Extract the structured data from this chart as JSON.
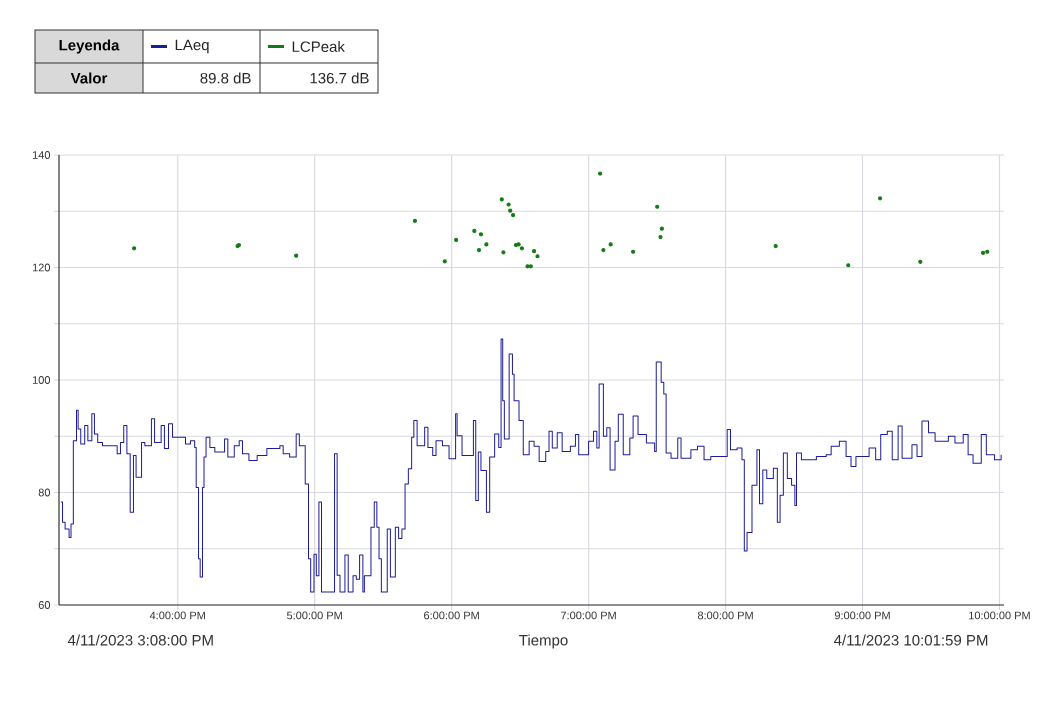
{
  "chart_data": {
    "type": "step",
    "xlabel": "Tiempo",
    "legend_title": "Leyenda",
    "legend": "top left",
    "grid": true,
    "annotations": [
      "4/11/2023 3:08:00 PM",
      "4/11/2023 10:01:59 PM",
      "Valor",
      "89.8 dB",
      "136.7 dB"
    ],
    "xlim": [
      15.1333,
      22.0331
    ],
    "ylim": [
      60,
      140
    ],
    "xticks": [
      {
        "value": 16,
        "label": "4:00:00 PM"
      },
      {
        "value": 17,
        "label": "5:00:00 PM"
      },
      {
        "value": 18,
        "label": "6:00:00 PM"
      },
      {
        "value": 19,
        "label": "7:00:00 PM"
      },
      {
        "value": 20,
        "label": "8:00:00 PM"
      },
      {
        "value": 21,
        "label": "9:00:00 PM"
      },
      {
        "value": 22,
        "label": "10:00:00 PM"
      }
    ],
    "yticks": [
      60,
      {
        "value": 70,
        "label": null
      },
      80,
      {
        "value": 90,
        "label": null
      },
      100,
      {
        "value": 110,
        "label": null
      },
      120,
      {
        "value": 130,
        "label": null
      },
      140
    ],
    "series": [
      {
        "name": "LAeq",
        "color": "#1c1c96",
        "x": [
          15.147,
          15.159,
          15.178,
          15.207,
          15.221,
          15.238,
          15.261,
          15.273,
          15.292,
          15.321,
          15.344,
          15.373,
          15.392,
          15.416,
          15.451,
          15.558,
          15.582,
          15.606,
          15.629,
          15.653,
          15.677,
          15.696,
          15.736,
          15.76,
          15.808,
          15.831,
          15.879,
          15.903,
          15.933,
          15.962,
          16.057,
          16.093,
          16.124,
          16.135,
          16.152,
          16.164,
          16.181,
          16.192,
          16.207,
          16.235,
          16.271,
          16.342,
          16.366,
          16.413,
          16.449,
          16.473,
          16.52,
          16.58,
          16.651,
          16.746,
          16.77,
          16.817,
          16.865,
          16.888,
          16.931,
          16.955,
          16.971,
          16.995,
          17.012,
          17.031,
          17.05,
          17.145,
          17.164,
          17.185,
          17.221,
          17.245,
          17.28,
          17.304,
          17.328,
          17.352,
          17.363,
          17.411,
          17.435,
          17.454,
          17.47,
          17.487,
          17.53,
          17.553,
          17.589,
          17.613,
          17.637,
          17.66,
          17.684,
          17.708,
          17.724,
          17.748,
          17.803,
          17.827,
          17.862,
          17.886,
          17.933,
          17.981,
          18.029,
          18.04,
          18.076,
          18.159,
          18.176,
          18.195,
          18.214,
          18.254,
          18.278,
          18.314,
          18.344,
          18.361,
          18.373,
          18.385,
          18.42,
          18.444,
          18.456,
          18.492,
          18.523,
          18.566,
          18.602,
          18.639,
          18.687,
          18.711,
          18.735,
          18.771,
          18.807,
          18.867,
          18.904,
          18.928,
          19.0,
          19.036,
          19.06,
          19.077,
          19.108,
          19.133,
          19.157,
          19.193,
          19.217,
          19.253,
          19.301,
          19.325,
          19.361,
          19.422,
          19.482,
          19.494,
          19.53,
          19.549,
          19.566,
          19.602,
          19.651,
          19.675,
          19.747,
          19.795,
          19.843,
          19.892,
          20.012,
          20.036,
          20.084,
          20.12,
          20.137,
          20.157,
          20.193,
          20.229,
          20.248,
          20.272,
          20.301,
          20.349,
          20.378,
          20.398,
          20.422,
          20.451,
          20.482,
          20.506,
          20.518,
          20.554,
          20.663,
          20.735,
          20.771,
          20.831,
          20.88,
          20.916,
          20.952,
          21.048,
          21.096,
          21.133,
          21.181,
          21.217,
          21.26,
          21.289,
          21.361,
          21.398,
          21.434,
          21.482,
          21.53,
          21.627,
          21.675,
          21.735,
          21.771,
          21.807,
          21.867,
          21.904,
          21.964,
          22.012
        ],
        "values": [
          78.3,
          74.7,
          73.5,
          72,
          74.4,
          89.2,
          94.6,
          91.3,
          88.6,
          91.9,
          89.2,
          94,
          90.4,
          88.9,
          88.3,
          86.9,
          88.9,
          91.9,
          86.9,
          76.5,
          86.6,
          82.7,
          88.9,
          88.3,
          93.1,
          88.9,
          91.9,
          87.8,
          92.2,
          89.8,
          88.6,
          89.2,
          88,
          80.9,
          68.2,
          65,
          80.9,
          86.3,
          89.8,
          88,
          87.2,
          89.5,
          86.3,
          88.3,
          89.2,
          86.9,
          85.7,
          86.6,
          87.8,
          88.3,
          86.9,
          86.3,
          90.4,
          88.3,
          81.5,
          68.2,
          62.3,
          69,
          65.2,
          78.3,
          62.3,
          86.9,
          65.3,
          62.3,
          68.9,
          62.3,
          65.2,
          64.6,
          68.9,
          62.3,
          65.2,
          73.8,
          78.3,
          73.8,
          68.2,
          62.3,
          73.5,
          65,
          73.8,
          71.8,
          73.5,
          81.5,
          84.2,
          89.8,
          92.8,
          88.3,
          91.6,
          88,
          86.6,
          89.2,
          88.3,
          86,
          94,
          90.1,
          86.6,
          92.8,
          78.6,
          87.2,
          83.9,
          76.5,
          86.3,
          90.4,
          88,
          107.3,
          96.3,
          89.5,
          104.6,
          101,
          96.3,
          92.8,
          86.7,
          89.1,
          88.2,
          85.5,
          87.3,
          90.9,
          87.9,
          90.6,
          87.3,
          88.2,
          90.3,
          86.7,
          89.1,
          90.9,
          87.9,
          99.3,
          90,
          91.5,
          84,
          89.1,
          93.9,
          86.7,
          89.7,
          93.6,
          90.3,
          88.8,
          87.3,
          103.2,
          99.6,
          97.5,
          87,
          86.1,
          89.7,
          86.1,
          87.6,
          88.2,
          85.8,
          86.4,
          91.2,
          87.6,
          87.9,
          85.8,
          69.6,
          72.9,
          81.3,
          87.6,
          78,
          84,
          82.5,
          84.3,
          74.7,
          79.5,
          87,
          82.5,
          81.3,
          77.7,
          87,
          85.8,
          86.4,
          86.7,
          88.2,
          89.1,
          86.4,
          84.6,
          86.4,
          87.9,
          85.8,
          90.3,
          90.9,
          85.8,
          91.8,
          86.1,
          88.5,
          86.4,
          92.7,
          90.6,
          89.1,
          90,
          88.8,
          90.3,
          86.7,
          85.2,
          90.3,
          86.7,
          85.8,
          86.7
        ]
      },
      {
        "name": "LCPeak",
        "type": "scatter",
        "marker": "circle",
        "color": "#157a15",
        "x": [
          15.682,
          16.437,
          16.447,
          16.865,
          17.732,
          17.95,
          18.033,
          18.166,
          18.214,
          18.2,
          18.254,
          18.366,
          18.378,
          18.416,
          18.428,
          18.449,
          18.47,
          18.489,
          18.513,
          18.554,
          18.578,
          18.602,
          18.627,
          19.084,
          19.108,
          19.161,
          19.325,
          19.501,
          19.525,
          19.535,
          20.366,
          20.896,
          21.128,
          21.422,
          21.88,
          21.911
        ],
        "values": [
          123.4,
          123.8,
          124.0,
          122.1,
          128.3,
          121.1,
          124.9,
          126.5,
          125.9,
          123.1,
          124.1,
          132.1,
          122.7,
          131.2,
          130.1,
          129.3,
          124.0,
          124.1,
          123.4,
          120.2,
          120.2,
          122.9,
          122.0,
          136.7,
          123.1,
          124.1,
          122.8,
          130.8,
          125.4,
          126.9,
          123.8,
          120.4,
          132.3,
          121.0,
          122.6,
          122.8
        ]
      }
    ]
  }
}
